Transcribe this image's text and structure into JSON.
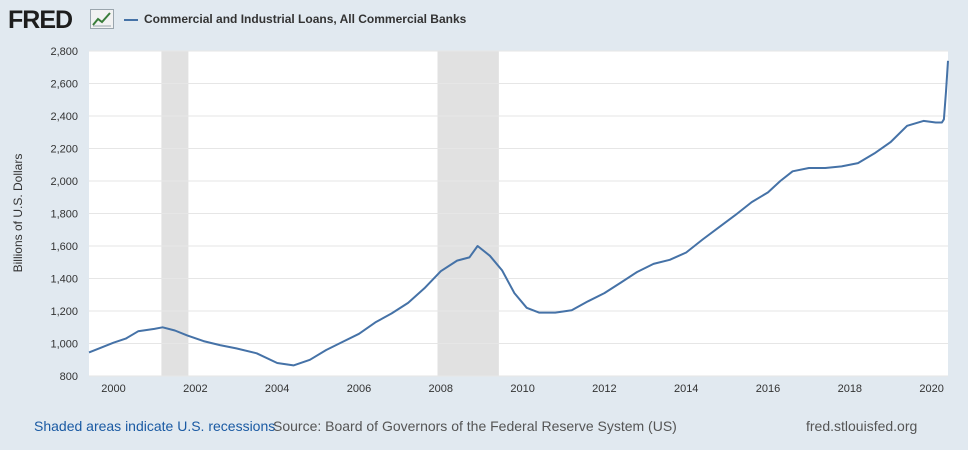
{
  "brand": {
    "logo_text": "FRED",
    "logo_icon": "chart-trend-icon"
  },
  "footer": {
    "recession_note": "Shaded areas indicate U.S. recessions",
    "source": "Source: Board of Governors of the Federal Reserve System (US)",
    "site": "fred.stlouisfed.org"
  },
  "colors": {
    "background": "#e1e9f0",
    "plot_background": "#ffffff",
    "series": "#4572a7",
    "recession": "#e1e1e1",
    "link": "#1a5aa3"
  },
  "chart_data": {
    "type": "line",
    "title": "",
    "xlabel": "",
    "ylabel": "Billions of U.S. Dollars",
    "xlim": [
      1999.4,
      2020.4
    ],
    "ylim": [
      800,
      2800
    ],
    "grid": true,
    "legend_position": "top-left",
    "x_ticks": [
      2000,
      2002,
      2004,
      2006,
      2008,
      2010,
      2012,
      2014,
      2016,
      2018,
      2020
    ],
    "x_tick_labels": [
      "2000",
      "2002",
      "2004",
      "2006",
      "2008",
      "2010",
      "2012",
      "2014",
      "2016",
      "2018",
      "2020"
    ],
    "y_ticks": [
      800,
      1000,
      1200,
      1400,
      1600,
      1800,
      2000,
      2200,
      2400,
      2600,
      2800
    ],
    "y_tick_labels": [
      "800",
      "1,000",
      "1,200",
      "1,400",
      "1,600",
      "1,800",
      "2,000",
      "2,200",
      "2,400",
      "2,600",
      "2,800"
    ],
    "recessions": [
      [
        2001.17,
        2001.83
      ],
      [
        2007.92,
        2009.42
      ]
    ],
    "series": [
      {
        "name": "Commercial and Industrial Loans, All Commercial Banks",
        "x": [
          1999.4,
          1999.7,
          2000.0,
          2000.3,
          2000.6,
          2001.0,
          2001.2,
          2001.5,
          2001.8,
          2002.2,
          2002.6,
          2003.0,
          2003.5,
          2004.0,
          2004.4,
          2004.8,
          2005.2,
          2005.6,
          2006.0,
          2006.4,
          2006.8,
          2007.2,
          2007.6,
          2008.0,
          2008.4,
          2008.7,
          2008.9,
          2009.2,
          2009.5,
          2009.8,
          2010.1,
          2010.4,
          2010.8,
          2011.2,
          2011.6,
          2012.0,
          2012.4,
          2012.8,
          2013.2,
          2013.6,
          2014.0,
          2014.4,
          2014.8,
          2015.2,
          2015.6,
          2016.0,
          2016.3,
          2016.6,
          2017.0,
          2017.4,
          2017.8,
          2018.2,
          2018.6,
          2019.0,
          2019.4,
          2019.8,
          2020.1,
          2020.25,
          2020.3,
          2020.35,
          2020.4
        ],
        "values": [
          945,
          975,
          1005,
          1030,
          1075,
          1090,
          1100,
          1080,
          1050,
          1015,
          990,
          970,
          940,
          880,
          865,
          900,
          960,
          1010,
          1060,
          1130,
          1185,
          1250,
          1340,
          1445,
          1510,
          1530,
          1600,
          1540,
          1450,
          1310,
          1220,
          1190,
          1190,
          1205,
          1260,
          1310,
          1375,
          1440,
          1490,
          1515,
          1560,
          1640,
          1715,
          1790,
          1870,
          1930,
          2000,
          2060,
          2080,
          2080,
          2090,
          2110,
          2170,
          2240,
          2340,
          2370,
          2360,
          2360,
          2380,
          2550,
          2740
        ]
      }
    ]
  }
}
